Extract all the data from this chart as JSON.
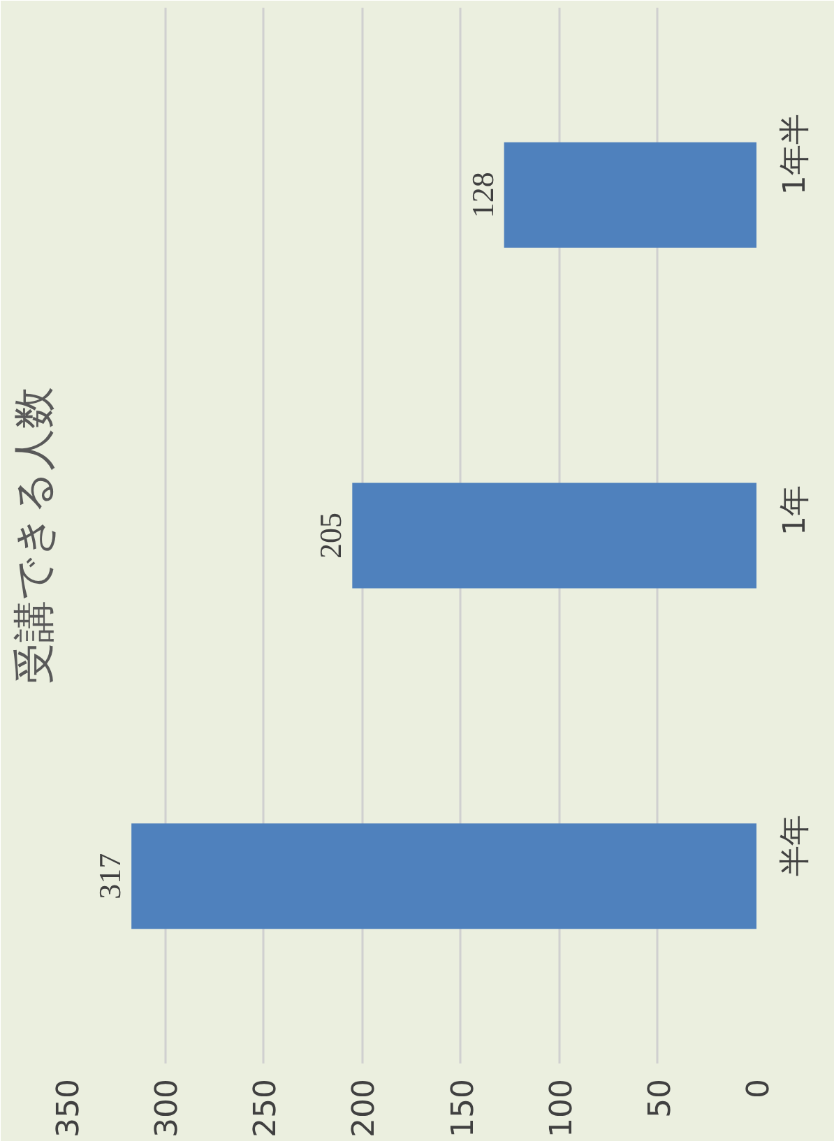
{
  "chart_data": {
    "type": "bar",
    "orientation": "horizontal",
    "title": "受講できる人数",
    "categories": [
      "1年半",
      "1年",
      "半年"
    ],
    "values": [
      128,
      205,
      317
    ],
    "color": "#4f81bd",
    "xlim": [
      350,
      0
    ],
    "xticks": [
      0,
      50,
      100,
      150,
      200,
      250,
      300,
      350
    ],
    "grid": "x",
    "data_labels": true
  }
}
